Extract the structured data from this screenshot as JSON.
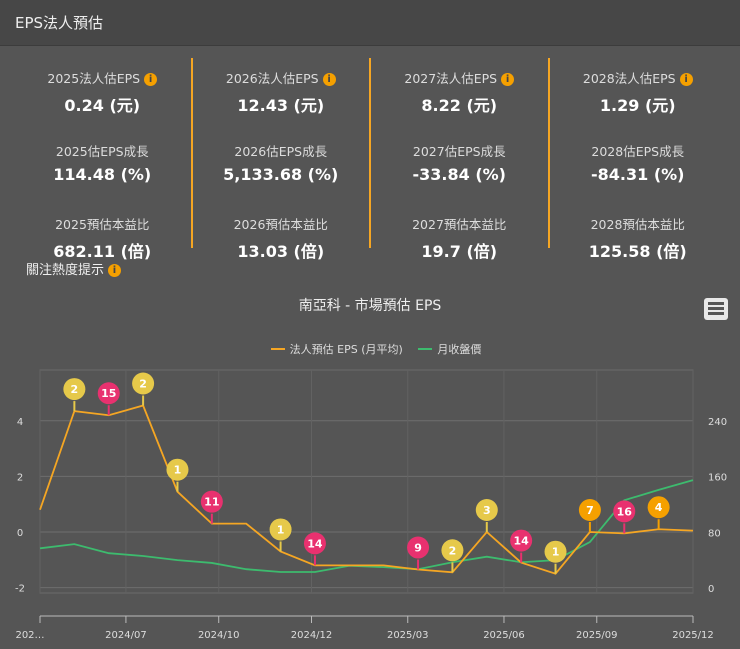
{
  "header": {
    "title": "EPS法人預估"
  },
  "stats": [
    {
      "eps_label": "2025法人估EPS",
      "eps": "0.24 (元)",
      "growth_label": "2025估EPS成長",
      "growth": "114.48 (%)",
      "pe_label": "2025預估本益比",
      "pe": "682.11 (倍)"
    },
    {
      "eps_label": "2026法人估EPS",
      "eps": "12.43 (元)",
      "growth_label": "2026估EPS成長",
      "growth": "5,133.68 (%)",
      "pe_label": "2026預估本益比",
      "pe": "13.03 (倍)"
    },
    {
      "eps_label": "2027法人估EPS",
      "eps": "8.22 (元)",
      "growth_label": "2027估EPS成長",
      "growth": "-33.84 (%)",
      "pe_label": "2027預估本益比",
      "pe": "19.7 (倍)"
    },
    {
      "eps_label": "2028法人估EPS",
      "eps": "1.29 (元)",
      "growth_label": "2028估EPS成長",
      "growth": "-84.31 (%)",
      "pe_label": "2028預估本益比",
      "pe": "125.58 (倍)"
    }
  ],
  "heat": {
    "label": "關注熱度提示",
    "info_icon": "i"
  },
  "chart_data": {
    "type": "line",
    "title": "南亞科 - 市場預估 EPS",
    "legend_position": "top-center",
    "x_ticks": [
      {
        "label": "202…",
        "index": 0
      },
      {
        "label": "2024/07",
        "index": 2.5
      },
      {
        "label": "2024/10",
        "index": 5.2
      },
      {
        "label": "2024/12",
        "index": 7.9
      },
      {
        "label": "2025/03",
        "index": 10.7
      },
      {
        "label": "2025/06",
        "index": 13.5
      },
      {
        "label": "2025/09",
        "index": 16.2
      },
      {
        "label": "2025/12",
        "index": 19
      }
    ],
    "y_left": {
      "ticks": [
        4,
        2,
        0,
        -2
      ],
      "range": [
        -2,
        5.7
      ]
    },
    "y_right": {
      "ticks": [
        240,
        160,
        80,
        0
      ],
      "range": [
        0,
        306
      ]
    },
    "series": [
      {
        "name": "法人預估 EPS (月平均)",
        "color": "#f5a623",
        "axis": "left",
        "values": [
          0.8,
          4.35,
          4.2,
          4.55,
          1.45,
          0.3,
          0.3,
          -0.7,
          -1.2,
          -1.2,
          -1.2,
          -1.35,
          -1.45,
          0,
          -1.1,
          -1.5,
          0,
          -0.05,
          0.1,
          0.05
        ]
      },
      {
        "name": "月收盤價",
        "color": "#3dbb6e",
        "axis": "right",
        "values": [
          57,
          63,
          50,
          46,
          40,
          36,
          27,
          23,
          23,
          32,
          30,
          27,
          37,
          45,
          37,
          40,
          66,
          126,
          141,
          155
        ]
      }
    ],
    "markers": [
      {
        "index": 1,
        "label": "2",
        "kind": "yellow"
      },
      {
        "index": 2,
        "label": "15",
        "kind": "pink"
      },
      {
        "index": 3,
        "label": "2",
        "kind": "yellow"
      },
      {
        "index": 4,
        "label": "1",
        "kind": "yellow"
      },
      {
        "index": 5,
        "label": "11",
        "kind": "pink"
      },
      {
        "index": 7,
        "label": "1",
        "kind": "yellow"
      },
      {
        "index": 8,
        "label": "14",
        "kind": "pink"
      },
      {
        "index": 11,
        "label": "9",
        "kind": "pink"
      },
      {
        "index": 12,
        "label": "2",
        "kind": "yellow"
      },
      {
        "index": 13,
        "label": "3",
        "kind": "yellow"
      },
      {
        "index": 14,
        "label": "14",
        "kind": "pink"
      },
      {
        "index": 15,
        "label": "1",
        "kind": "yellow"
      },
      {
        "index": 16,
        "label": "7",
        "kind": "orange"
      },
      {
        "index": 17,
        "label": "16",
        "kind": "pink"
      },
      {
        "index": 18,
        "label": "4",
        "kind": "orange"
      }
    ],
    "marker_colors": {
      "yellow": "#e6c94a",
      "pink": "#e8316f",
      "orange": "#f5a000"
    }
  }
}
